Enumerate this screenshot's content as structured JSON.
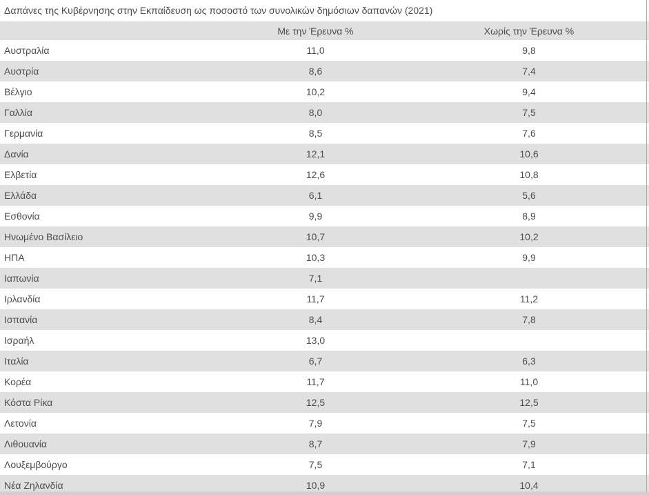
{
  "title": "Δαπάνες της Κυβέρνησης στην Εκπαίδευση ως ποσοστό των συνολικών δημόσιων δαπανών (2021)",
  "table": {
    "columns": [
      "",
      "Με την Έρευνα %",
      "Χωρίς την Έρευνα %"
    ],
    "rows": [
      {
        "country": "Αυστραλία",
        "with_research": "11,0",
        "without_research": "9,8"
      },
      {
        "country": "Αυστρία",
        "with_research": "8,6",
        "without_research": "7,4"
      },
      {
        "country": "Βέλγιο",
        "with_research": "10,2",
        "without_research": "9,4"
      },
      {
        "country": "Γαλλία",
        "with_research": "8,0",
        "without_research": "7,5"
      },
      {
        "country": "Γερμανία",
        "with_research": "8,5",
        "without_research": "7,6"
      },
      {
        "country": "Δανία",
        "with_research": "12,1",
        "without_research": "10,6"
      },
      {
        "country": "Ελβετία",
        "with_research": "12,6",
        "without_research": "10,8"
      },
      {
        "country": "Ελλάδα",
        "with_research": "6,1",
        "without_research": "5,6"
      },
      {
        "country": "Εσθονία",
        "with_research": "9,9",
        "without_research": "8,9"
      },
      {
        "country": "Ηνωμένο Βασίλειο",
        "with_research": "10,7",
        "without_research": "10,2"
      },
      {
        "country": "ΗΠΑ",
        "with_research": "10,3",
        "without_research": "9,9"
      },
      {
        "country": "Ιαπωνία",
        "with_research": "7,1",
        "without_research": ""
      },
      {
        "country": "Ιρλανδία",
        "with_research": "11,7",
        "without_research": "11,2"
      },
      {
        "country": "Ισπανία",
        "with_research": "8,4",
        "without_research": "7,8"
      },
      {
        "country": "Ισραήλ",
        "with_research": "13,0",
        "without_research": ""
      },
      {
        "country": "Ιταλία",
        "with_research": "6,7",
        "without_research": "6,3"
      },
      {
        "country": "Κορέα",
        "with_research": "11,7",
        "without_research": "11,0"
      },
      {
        "country": "Κόστα Ρίκα",
        "with_research": "12,5",
        "without_research": "12,5"
      },
      {
        "country": "Λετονία",
        "with_research": "7,9",
        "without_research": "7,5"
      },
      {
        "country": "Λιθουανία",
        "with_research": "8,7",
        "without_research": "7,9"
      },
      {
        "country": "Λουξεμβούργο",
        "with_research": "7,5",
        "without_research": "7,1"
      },
      {
        "country": "Νέα Ζηλανδία",
        "with_research": "10,9",
        "without_research": "10,4"
      }
    ]
  },
  "colors": {
    "row_alt_background": "#e0e0e0",
    "header_background": "#e0e0e0",
    "text": "#4d4d4d",
    "vertical_scrollbar": "#ababab",
    "horizontal_scrollbar": "#d0d0d0"
  },
  "chart_data": {
    "type": "table",
    "title": "Δαπάνες της Κυβέρνησης στην Εκπαίδευση ως ποσοστό των συνολικών δημόσιων δαπανών (2021)",
    "categories": [
      "Αυστραλία",
      "Αυστρία",
      "Βέλγιο",
      "Γαλλία",
      "Γερμανία",
      "Δανία",
      "Ελβετία",
      "Ελλάδα",
      "Εσθονία",
      "Ηνωμένο Βασίλειο",
      "ΗΠΑ",
      "Ιαπωνία",
      "Ιρλανδία",
      "Ισπανία",
      "Ισραήλ",
      "Ιταλία",
      "Κορέα",
      "Κόστα Ρίκα",
      "Λετονία",
      "Λιθουανία",
      "Λουξεμβούργο",
      "Νέα Ζηλανδία"
    ],
    "series": [
      {
        "name": "Με την Έρευνα %",
        "values": [
          11.0,
          8.6,
          10.2,
          8.0,
          8.5,
          12.1,
          12.6,
          6.1,
          9.9,
          10.7,
          10.3,
          7.1,
          11.7,
          8.4,
          13.0,
          6.7,
          11.7,
          12.5,
          7.9,
          8.7,
          7.5,
          10.9
        ]
      },
      {
        "name": "Χωρίς την Έρευνα %",
        "values": [
          9.8,
          7.4,
          9.4,
          7.5,
          7.6,
          10.6,
          10.8,
          5.6,
          8.9,
          10.2,
          9.9,
          null,
          11.2,
          7.8,
          null,
          6.3,
          11.0,
          12.5,
          7.5,
          7.9,
          7.1,
          10.4
        ]
      }
    ]
  }
}
